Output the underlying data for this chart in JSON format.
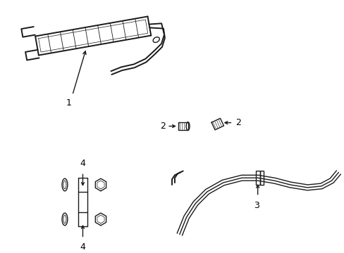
{
  "bg_color": "#ffffff",
  "line_color": "#1a1a1a",
  "label_color": "#000000",
  "lw": 1.0,
  "lw_thick": 1.4,
  "fig_width": 4.89,
  "fig_height": 3.6,
  "dpi": 100
}
